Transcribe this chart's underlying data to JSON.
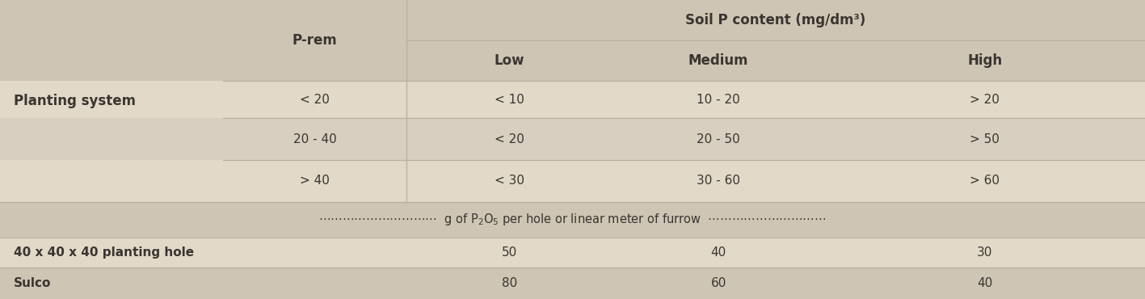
{
  "bg_color": "#cec5b4",
  "row_light": "#e2d9c8",
  "row_medium": "#d8cfc0",
  "row_dark_bg": "#cec5b4",
  "figsize": [
    14.17,
    3.7
  ],
  "dpi": 100,
  "col_header_soil": "Soil P content (mg/dm³)",
  "col_header_prem": "P-rem",
  "col_header_planting": "Planting system",
  "col_headers": [
    "Low",
    "Medium",
    "High"
  ],
  "prem_rows": [
    "< 20",
    "20 - 40",
    "> 40"
  ],
  "low_vals": [
    "< 10",
    "< 20",
    "< 30"
  ],
  "medium_vals": [
    "10 - 20",
    "20 - 50",
    "30 - 60"
  ],
  "high_vals": [
    "> 20",
    "> 50",
    "> 60"
  ],
  "planting_rows": [
    "40 x 40 x 40 planting hole",
    "Sulco"
  ],
  "planting_low": [
    "50",
    "80"
  ],
  "planting_medium": [
    "40",
    "60"
  ],
  "planting_high": [
    "30",
    "40"
  ],
  "text_color": "#3a3530",
  "line_color": "#b8b0a0",
  "c0": 0.0,
  "c1": 0.195,
  "c2": 0.355,
  "c3": 0.535,
  "c4": 0.72,
  "c5": 1.0,
  "row_tops": [
    1.0,
    0.865,
    0.73,
    0.605,
    0.465,
    0.325,
    0.205,
    0.105,
    0.0
  ]
}
